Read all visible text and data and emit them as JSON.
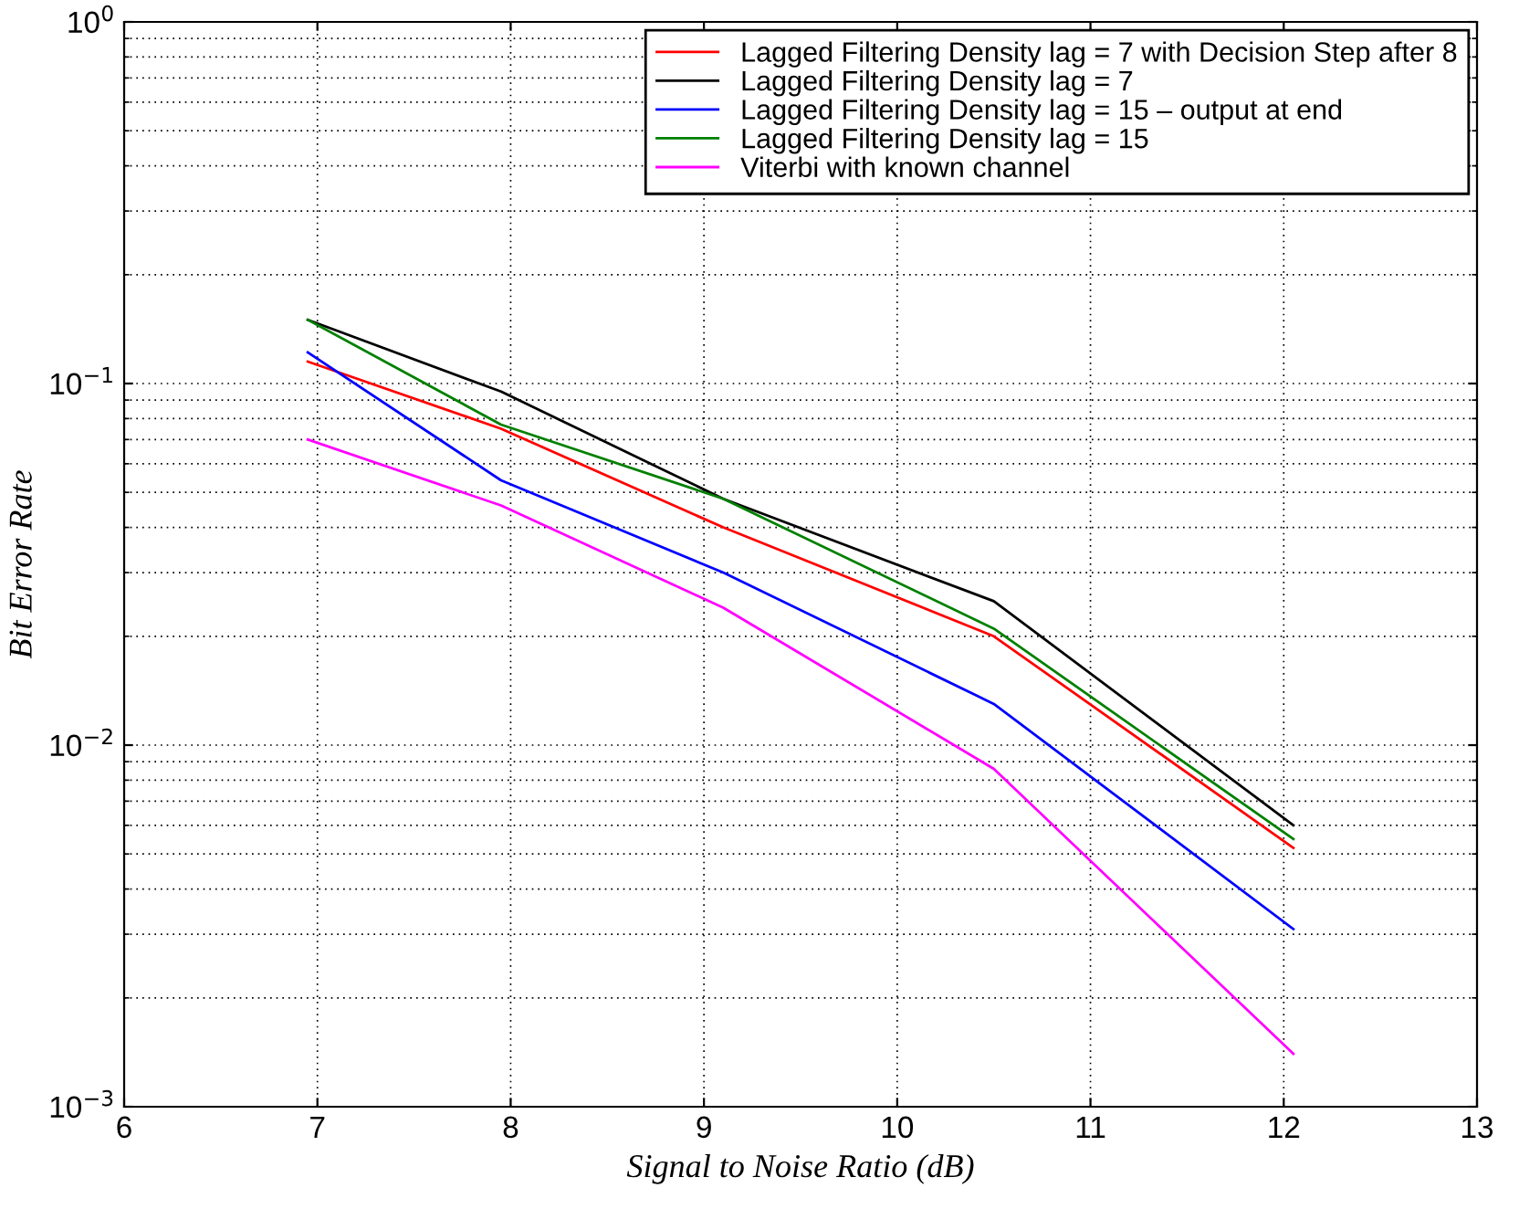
{
  "chart_data": {
    "type": "line",
    "xlabel": "Signal to Noise Ratio (dB)",
    "ylabel": "Bit Error Rate",
    "x": [
      6.95,
      7.95,
      9.1,
      10.5,
      12.05
    ],
    "series": [
      {
        "name": "Lagged Filtering Density lag = 7 with Decision Step after 8",
        "color": "#ff0000",
        "values": [
          0.115,
          0.075,
          0.04,
          0.02,
          0.0052
        ]
      },
      {
        "name": "Lagged Filtering Density lag = 7",
        "color": "#000000",
        "values": [
          0.15,
          0.095,
          0.048,
          0.025,
          0.006
        ]
      },
      {
        "name": "Lagged Filtering Density lag = 15 – output at end",
        "color": "#0000ff",
        "values": [
          0.122,
          0.054,
          0.03,
          0.013,
          0.0031
        ]
      },
      {
        "name": "Lagged Filtering Density lag = 15",
        "color": "#008000",
        "values": [
          0.15,
          0.077,
          0.048,
          0.021,
          0.0055
        ]
      },
      {
        "name": "Viterbi with known channel",
        "color": "#ff00ff",
        "values": [
          0.07,
          0.046,
          0.024,
          0.0086,
          0.0014
        ]
      }
    ],
    "log": "y",
    "xlim": [
      6,
      13
    ],
    "xticks": [
      6,
      7,
      8,
      9,
      10,
      11,
      12,
      13
    ],
    "ylim": [
      0.001,
      1
    ],
    "yticks": [
      {
        "value": 0.001,
        "label": "10$^{−3}$"
      },
      {
        "value": 0.01,
        "label": "10$^{−2}$"
      },
      {
        "value": 0.1,
        "label": "10$^{−1}$"
      },
      {
        "value": 1,
        "label": "10$^{0}$"
      }
    ],
    "grid": true,
    "legend": "top right",
    "line_style": "solid",
    "marker": "none"
  }
}
